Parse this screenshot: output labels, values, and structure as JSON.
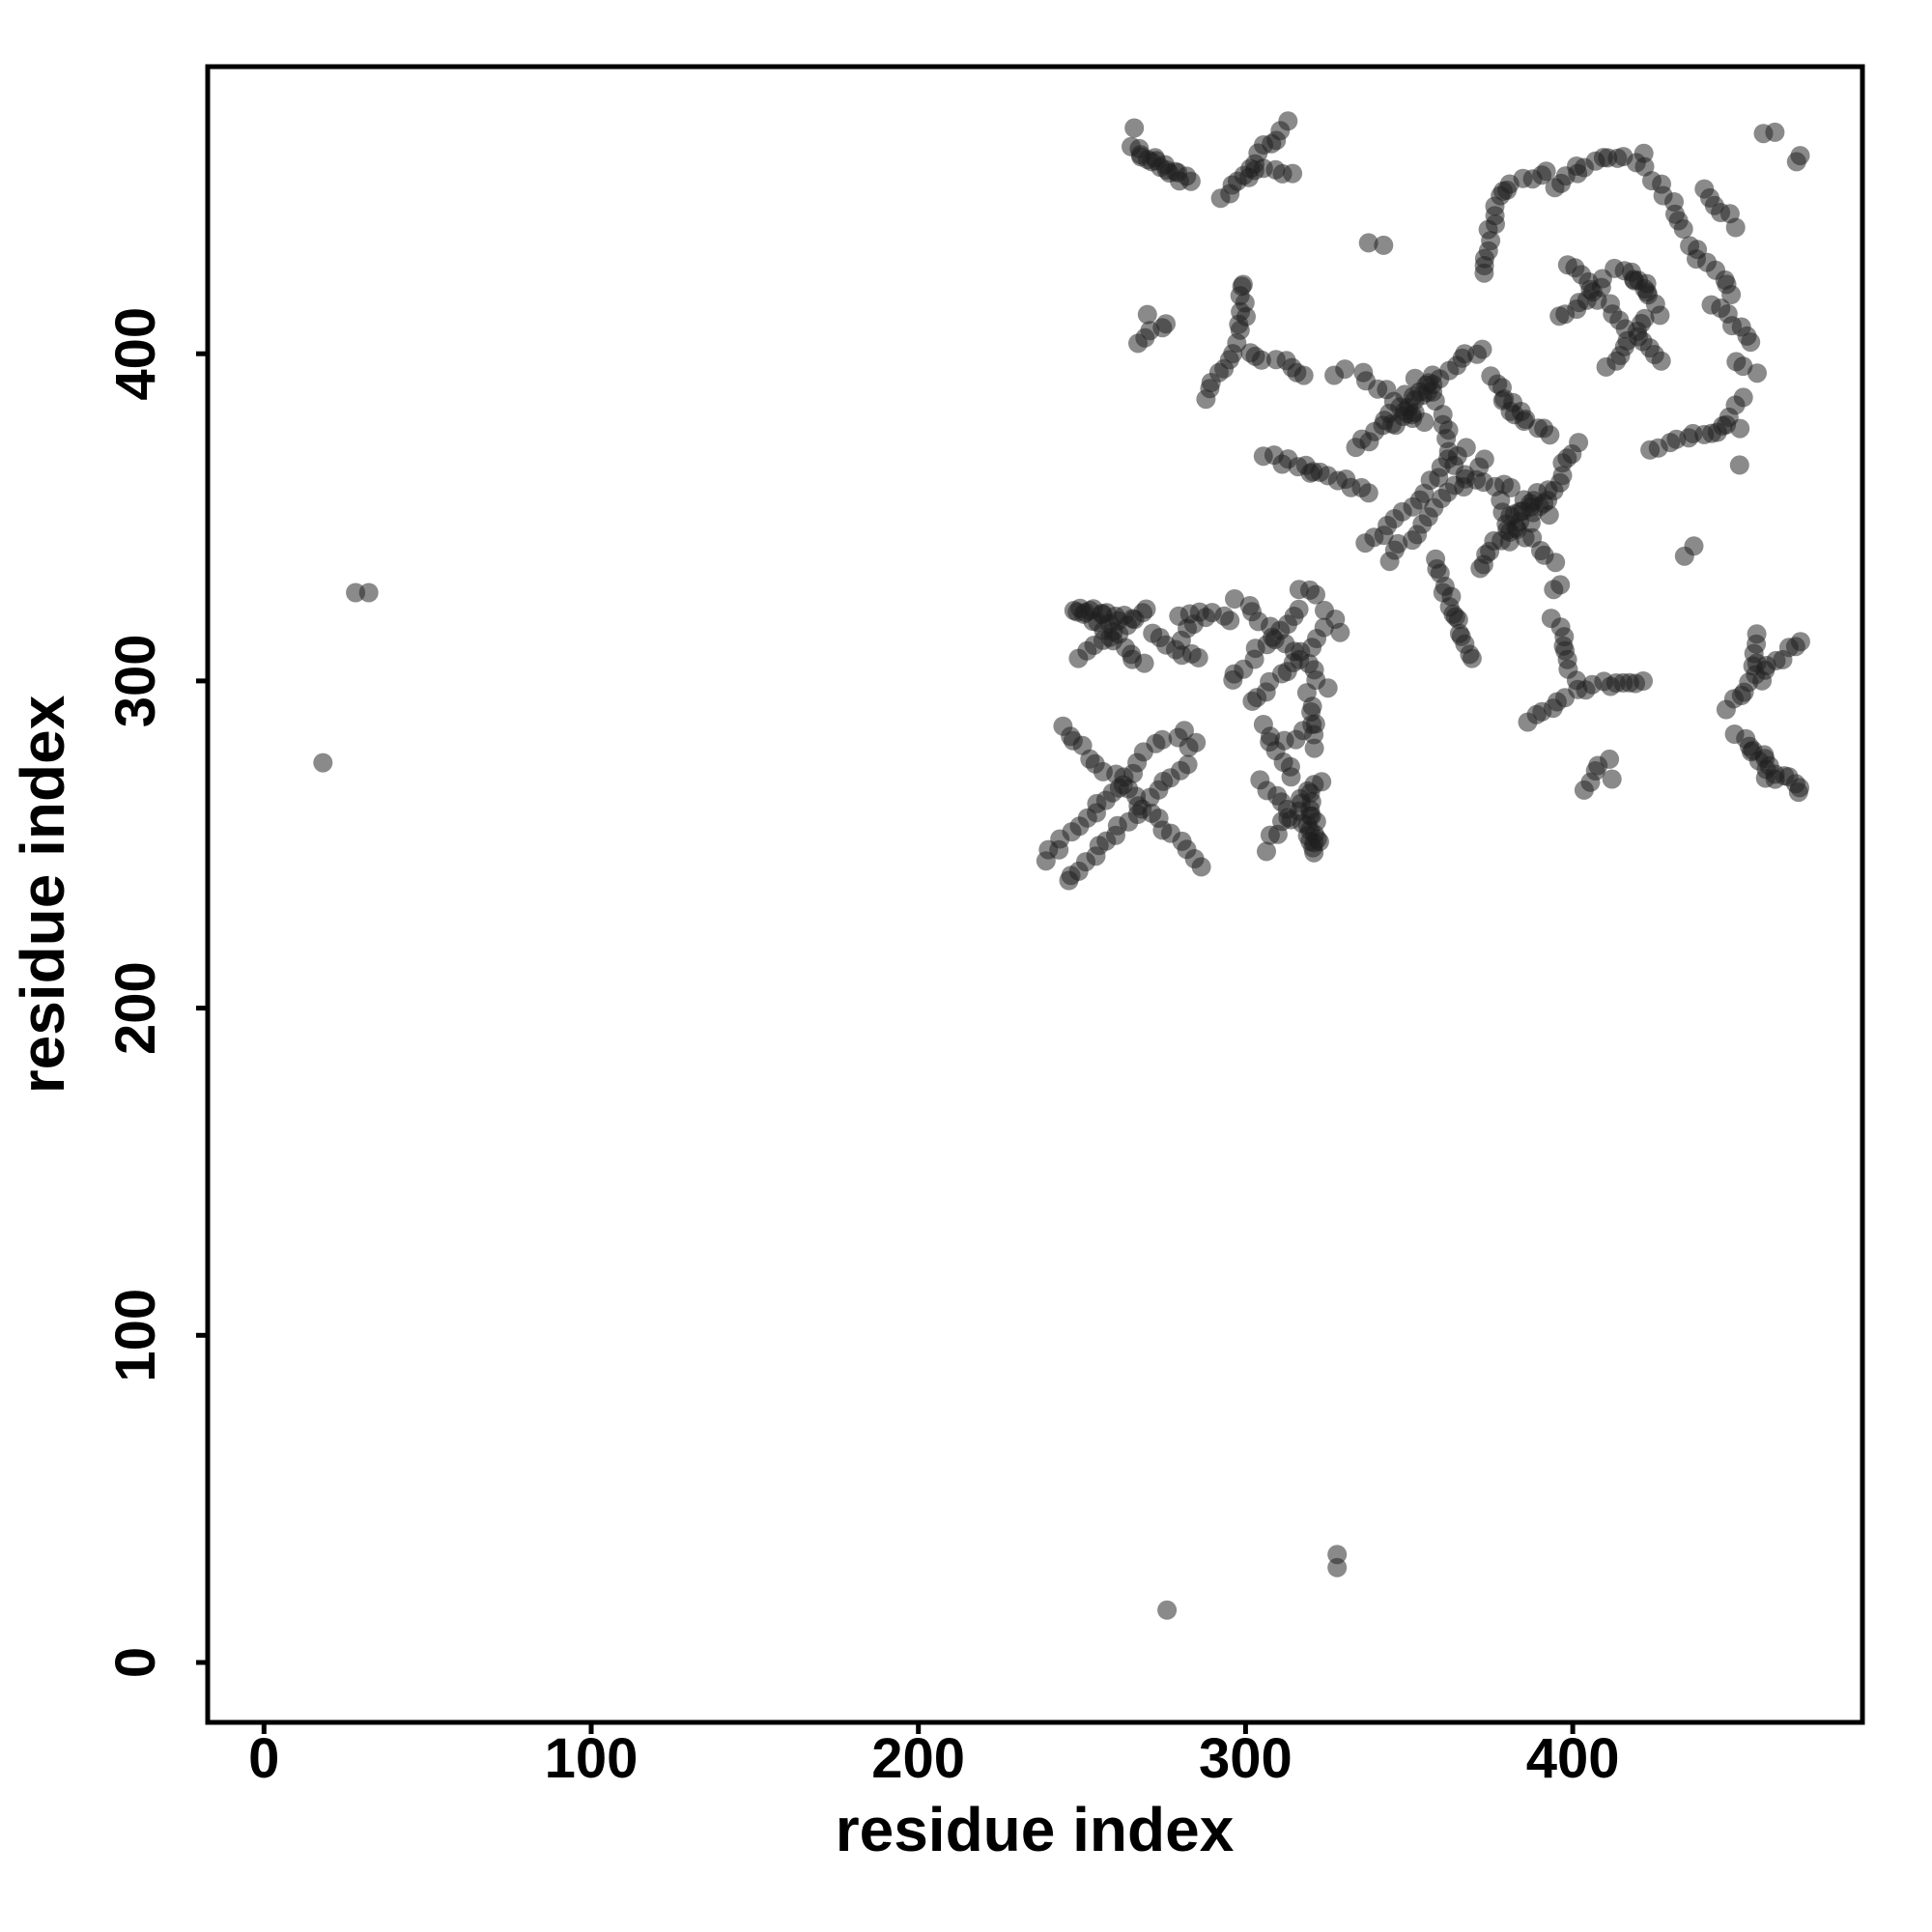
{
  "figure": {
    "background_color": "#ffffff",
    "frame_color": "#000000"
  },
  "chart_data": {
    "type": "scatter",
    "title": "",
    "xlabel": "residue index",
    "ylabel": "residue index",
    "xlim": [
      -17.2,
      488.5
    ],
    "ylim": [
      -18.3,
      487.8
    ],
    "x_ticks": [
      0,
      100,
      200,
      300,
      400
    ],
    "y_ticks": [
      0,
      100,
      200,
      300,
      400
    ],
    "grid": false,
    "legend": "none",
    "point_color": "#1f1f1f",
    "point_opacity": 0.52,
    "point_radius_units": 3,
    "symmetry": "points mirrored about y=x diagonal",
    "contact_segments": [
      [
        265,
        463,
        284,
        452,
        12
      ],
      [
        269,
        461,
        278,
        456,
        5
      ],
      [
        266,
        469,
        266,
        469,
        1
      ],
      [
        451,
        284,
        469,
        266,
        12
      ],
      [
        456,
        278,
        461,
        269,
        5
      ],
      [
        469,
        266,
        469,
        266,
        1
      ],
      [
        292,
        447,
        313,
        470,
        13
      ],
      [
        301,
        455,
        314,
        456,
        6
      ],
      [
        447,
        292,
        470,
        313,
        13
      ],
      [
        455,
        301,
        456,
        314,
        6
      ],
      [
        338,
        434,
        342,
        432,
        2
      ],
      [
        434,
        338,
        437,
        341,
        2
      ],
      [
        267,
        404,
        276,
        410,
        5
      ],
      [
        270,
        412,
        270,
        412,
        1
      ],
      [
        404,
        267,
        410,
        276,
        5
      ],
      [
        412,
        270,
        412,
        270,
        1
      ],
      [
        299,
        409,
        300,
        422,
        7
      ],
      [
        299,
        406,
        287,
        387,
        9
      ],
      [
        301,
        401,
        319,
        394,
        8
      ],
      [
        327,
        394,
        330,
        395,
        2
      ],
      [
        409,
        299,
        422,
        300,
        7
      ],
      [
        406,
        299,
        387,
        287,
        9
      ],
      [
        401,
        301,
        394,
        319,
        8
      ],
      [
        394,
        327,
        395,
        330,
        2
      ],
      [
        306,
        369,
        320,
        364,
        7
      ],
      [
        320,
        364,
        337,
        358,
        8
      ],
      [
        369,
        306,
        364,
        320,
        7
      ],
      [
        364,
        320,
        358,
        337,
        8
      ],
      [
        349,
        387,
        372,
        402,
        12
      ],
      [
        387,
        349,
        402,
        372,
        12
      ],
      [
        334,
        372,
        352,
        383,
        10
      ],
      [
        372,
        334,
        383,
        352,
        10
      ],
      [
        343,
        380,
        358,
        390,
        8
      ],
      [
        380,
        343,
        390,
        358,
        8
      ],
      [
        337,
        341,
        367,
        371,
        15
      ],
      [
        343,
        337,
        373,
        367,
        15
      ],
      [
        375,
        394,
        385,
        379,
        7
      ],
      [
        394,
        375,
        379,
        385,
        7
      ],
      [
        360,
        381,
        362,
        368,
        6
      ],
      [
        381,
        360,
        368,
        362,
        6
      ],
      [
        378,
        354,
        394,
        336,
        9
      ],
      [
        354,
        378,
        336,
        394,
        9
      ],
      [
        352,
        393,
        357,
        385,
        4
      ],
      [
        393,
        352,
        385,
        357,
        4
      ],
      [
        398,
        427,
        427,
        398,
        15
      ],
      [
        396,
        411,
        410,
        423,
        8
      ],
      [
        411,
        396,
        423,
        410,
        8
      ],
      [
        413,
        427,
        424,
        419,
        6
      ],
      [
        427,
        413,
        419,
        424,
        6
      ],
      [
        372,
        424,
        378,
        450,
        11
      ],
      [
        424,
        372,
        450,
        378,
        11
      ],
      [
        379,
        451,
        392,
        456,
        6
      ],
      [
        394,
        452,
        402,
        457,
        5
      ],
      [
        404,
        458,
        421,
        460,
        8
      ],
      [
        423,
        457,
        432,
        444,
        6
      ],
      [
        433,
        441,
        436,
        434,
        3
      ],
      [
        437,
        431,
        449,
        418,
        7
      ],
      [
        443,
        416,
        455,
        404,
        7
      ],
      [
        450,
        399,
        456,
        394,
        3
      ],
      [
        446,
        378,
        451,
        387,
        4
      ],
      [
        451,
        366,
        451,
        366,
        1
      ],
      [
        439,
        450,
        444,
        446,
        3
      ],
      [
        450,
        439,
        446,
        444,
        3
      ],
      [
        240,
        247,
        268,
        275,
        14
      ],
      [
        247,
        240,
        275,
        268,
        14
      ],
      [
        244,
        286,
        286,
        244,
        20
      ],
      [
        270,
        278,
        281,
        285,
        5
      ],
      [
        278,
        270,
        285,
        281,
        5
      ],
      [
        239,
        245,
        239,
        245,
        1
      ],
      [
        246,
        239,
        246,
        239,
        1
      ],
      [
        295,
        300,
        317,
        322,
        11
      ],
      [
        302,
        293,
        324,
        315,
        11
      ],
      [
        298,
        325,
        325,
        298,
        13
      ],
      [
        316,
        329,
        321,
        325,
        3
      ],
      [
        329,
        316,
        325,
        321,
        3
      ],
      [
        249,
        306,
        270,
        323,
        10
      ],
      [
        306,
        249,
        323,
        270,
        10
      ],
      [
        250,
        322,
        269,
        305,
        10
      ],
      [
        322,
        250,
        305,
        269,
        10
      ],
      [
        281,
        313,
        287,
        320,
        4
      ],
      [
        313,
        281,
        320,
        287,
        4
      ],
      [
        306,
        286,
        314,
        271,
        7
      ],
      [
        286,
        306,
        271,
        314,
        7
      ],
      [
        320,
        265,
        322,
        247,
        9
      ],
      [
        265,
        320,
        247,
        322,
        9
      ],
      [
        318,
        262,
        320,
        250,
        5
      ],
      [
        262,
        318,
        250,
        320,
        5
      ],
      [
        319,
        296,
        321,
        280,
        6
      ],
      [
        296,
        319,
        280,
        321,
        6
      ],
      [
        459,
        467,
        462,
        469,
        2
      ],
      [
        467,
        459,
        469,
        462,
        2
      ]
    ],
    "isolated_points": [
      [
        18,
        275
      ],
      [
        28,
        327
      ],
      [
        32,
        327
      ],
      [
        276,
        16
      ],
      [
        328,
        29
      ],
      [
        328,
        33
      ]
    ]
  },
  "axes_layout": {
    "x_axis_title": "residue index",
    "y_axis_title": "residue index"
  }
}
